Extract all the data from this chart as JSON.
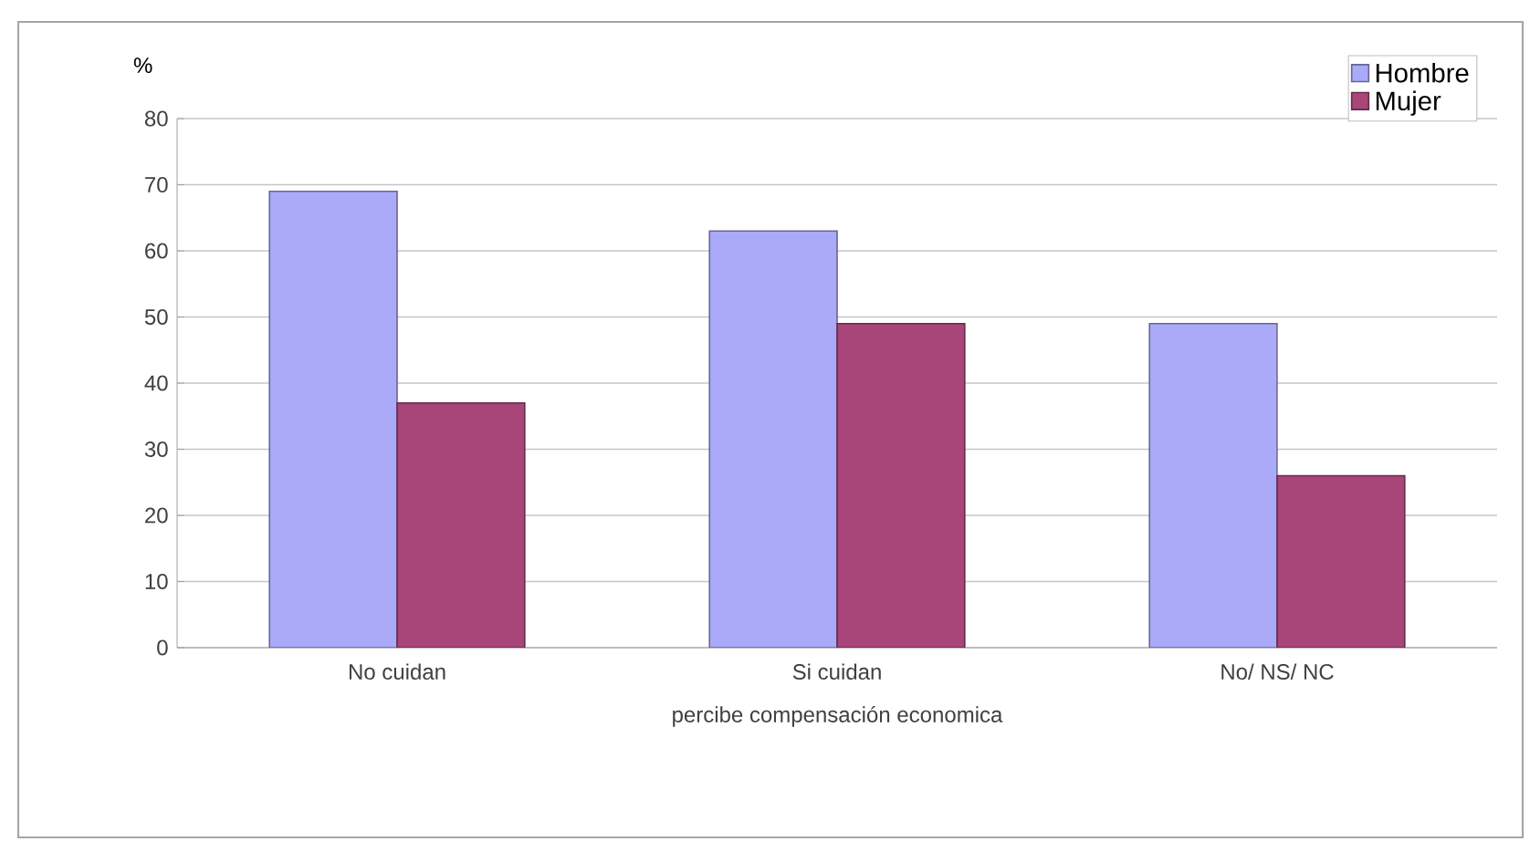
{
  "chart_data": {
    "type": "bar",
    "ylabel": "%",
    "xlabel": "percibe compensación economica",
    "categories": [
      "No cuidan",
      "Si cuidan",
      "No/ NS/ NC"
    ],
    "series": [
      {
        "name": "Hombre",
        "color": "#aaaaf8",
        "values": [
          69,
          63,
          49
        ]
      },
      {
        "name": "Mujer",
        "color": "#a8467a",
        "values": [
          37,
          49,
          26
        ]
      }
    ],
    "ylim": [
      0,
      80
    ],
    "yticks": [
      0,
      10,
      20,
      30,
      40,
      50,
      60,
      70,
      80
    ],
    "grid": "y",
    "legend": "top right"
  }
}
